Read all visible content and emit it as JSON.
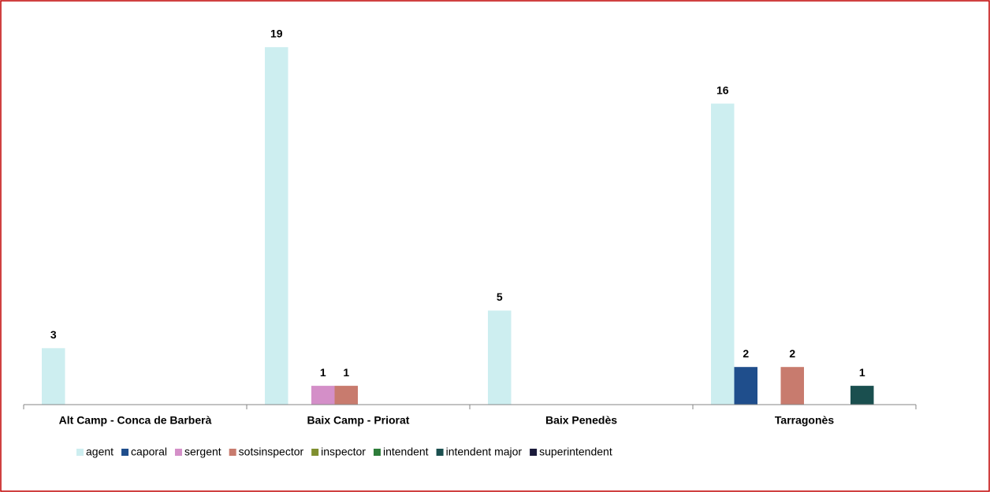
{
  "chart_data": {
    "type": "bar",
    "categories": [
      "Alt Camp - Conca de Barberà",
      "Baix Camp - Priorat",
      "Baix Penedès",
      "Tarragonès"
    ],
    "series": [
      {
        "name": "agent",
        "color": "#cdeef0",
        "values": [
          3,
          19,
          5,
          16
        ]
      },
      {
        "name": "caporal",
        "color": "#1f4e8c",
        "values": [
          0,
          0,
          0,
          2
        ]
      },
      {
        "name": "sergent",
        "color": "#d48fc8",
        "values": [
          0,
          1,
          0,
          0
        ]
      },
      {
        "name": "sotsinspector",
        "color": "#c87b6e",
        "values": [
          0,
          1,
          0,
          2
        ]
      },
      {
        "name": "inspector",
        "color": "#7f8f2f",
        "values": [
          0,
          0,
          0,
          0
        ]
      },
      {
        "name": "intendent",
        "color": "#2e7d3a",
        "values": [
          0,
          0,
          0,
          0
        ]
      },
      {
        "name": "intendent major",
        "color": "#1a4f4f",
        "values": [
          0,
          0,
          0,
          1
        ]
      },
      {
        "name": "superintendent",
        "color": "#1a1a3a",
        "values": [
          0,
          0,
          0,
          0
        ]
      }
    ],
    "ylim": [
      0,
      20
    ],
    "legend": "bottom"
  }
}
